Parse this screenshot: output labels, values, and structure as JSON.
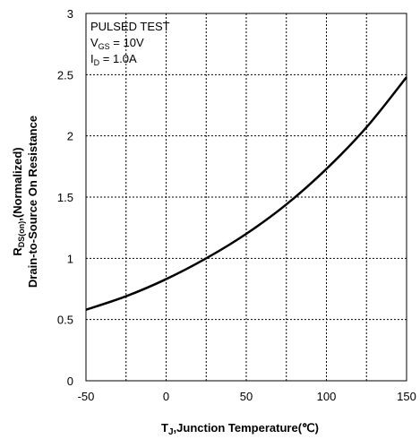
{
  "chart_data": {
    "type": "line",
    "xlim": [
      -50,
      150
    ],
    "ylim": [
      0,
      3
    ],
    "x_ticks": [
      "-50",
      "0",
      "50",
      "100",
      "150"
    ],
    "x_tick_values": [
      -50,
      0,
      50,
      100,
      150
    ],
    "y_ticks": [
      "0",
      "0.5",
      "1",
      "1.5",
      "2",
      "2.5",
      "3"
    ],
    "y_tick_values": [
      0,
      0.5,
      1,
      1.5,
      2,
      2.5,
      3
    ],
    "x_grid_values": [
      -50,
      -25,
      0,
      25,
      50,
      75,
      100,
      125,
      150
    ],
    "grid": true,
    "xlabel": {
      "main": "T",
      "sub": "J",
      "rest": ",Junction Temperature(℃)"
    },
    "ylabel": {
      "line1_main": "R",
      "line1_sub": "DS(on)",
      "line1_rest": ",(Normalized)",
      "line2": "Drain-to-Source On Resistance"
    },
    "annotations": {
      "line1": "PULSED TEST",
      "line2_main": "V",
      "line2_sub": "GS",
      "line2_rest": " = 10V",
      "line3_main": "I",
      "line3_sub": "D",
      "line3_rest": " = 1.0A"
    },
    "series": [
      {
        "x": [
          -50,
          -25,
          0,
          25,
          50,
          75,
          100,
          125,
          150
        ],
        "y": [
          0.58,
          0.69,
          0.83,
          1.0,
          1.2,
          1.44,
          1.73,
          2.07,
          2.48
        ]
      }
    ]
  }
}
